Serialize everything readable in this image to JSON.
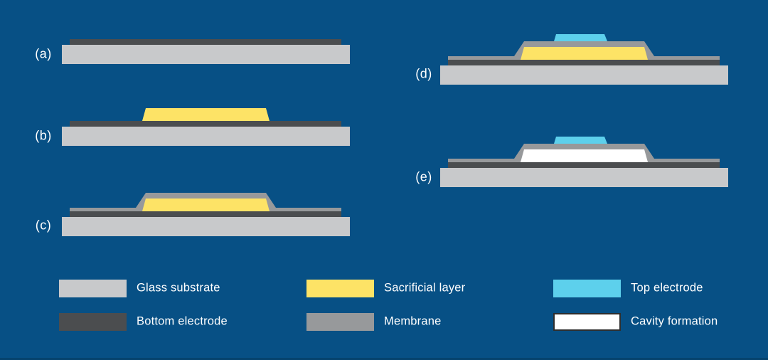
{
  "figure": {
    "title": "Fabrication process steps diagram",
    "background_color": "#075085",
    "bottom_edge_color": "#05436e",
    "label_color": "#ffffff",
    "colors": {
      "glass_substrate": "#c8c9cb",
      "bottom_electrode": "#4b4d4f",
      "sacrificial_layer": "#fde366",
      "membrane": "#97999b",
      "top_electrode": "#5dd0ec",
      "cavity": "#ffffff",
      "cavity_border": "#2e2e2e"
    },
    "panels": [
      {
        "label": "(a)",
        "layers": [
          "bottom_electrode",
          "glass_substrate"
        ]
      },
      {
        "label": "(b)",
        "layers": [
          "bottom_electrode",
          "sacrificial_layer",
          "glass_substrate"
        ]
      },
      {
        "label": "(c)",
        "layers": [
          "bottom_electrode",
          "membrane",
          "sacrificial_layer",
          "glass_substrate"
        ]
      },
      {
        "label": "(d)",
        "layers": [
          "bottom_electrode",
          "membrane",
          "sacrificial_layer",
          "top_electrode",
          "glass_substrate"
        ]
      },
      {
        "label": "(e)",
        "layers": [
          "bottom_electrode",
          "membrane",
          "cavity",
          "top_electrode",
          "glass_substrate"
        ]
      }
    ],
    "legend": [
      {
        "label": "Glass substrate",
        "color_key": "glass_substrate",
        "bordered": false
      },
      {
        "label": "Bottom electrode",
        "color_key": "bottom_electrode",
        "bordered": false
      },
      {
        "label": "Sacrificial layer",
        "color_key": "sacrificial_layer",
        "bordered": false
      },
      {
        "label": "Membrane",
        "color_key": "membrane",
        "bordered": false
      },
      {
        "label": "Top electrode",
        "color_key": "top_electrode",
        "bordered": false
      },
      {
        "label": "Cavity formation",
        "color_key": "cavity",
        "bordered": true
      }
    ]
  }
}
